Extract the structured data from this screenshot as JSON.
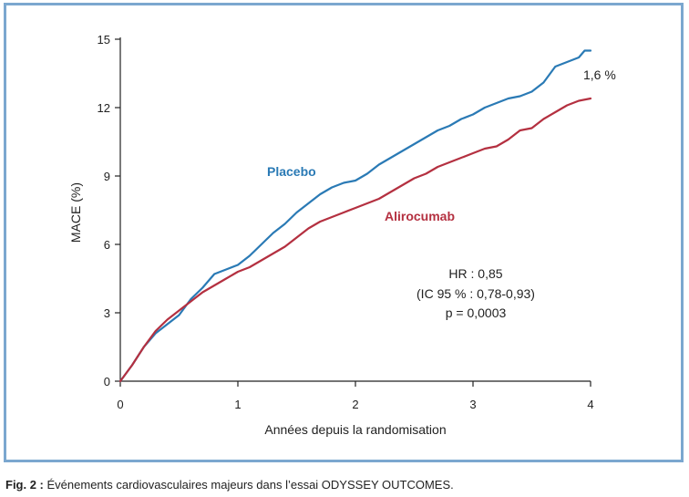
{
  "chart_data": {
    "type": "line",
    "xlabel": "Années depuis la randomisation",
    "ylabel": "MACE (%)",
    "xlim": [
      0,
      4
    ],
    "ylim": [
      0,
      15
    ],
    "x_ticks": [
      0,
      1,
      2,
      3,
      4
    ],
    "y_ticks": [
      0,
      3,
      6,
      9,
      12,
      15
    ],
    "x_tick_labels": [
      "0",
      "1",
      "2",
      "3",
      "4"
    ],
    "y_tick_labels": [
      "0",
      "3",
      "6",
      "9",
      "12",
      "15"
    ],
    "grid": false,
    "series": [
      {
        "name": "Placebo",
        "color": "#2a7ab5",
        "x": [
          0,
          0.1,
          0.2,
          0.3,
          0.4,
          0.5,
          0.6,
          0.7,
          0.8,
          0.9,
          1.0,
          1.1,
          1.2,
          1.3,
          1.4,
          1.5,
          1.6,
          1.7,
          1.8,
          1.9,
          2.0,
          2.1,
          2.2,
          2.3,
          2.4,
          2.5,
          2.6,
          2.7,
          2.8,
          2.9,
          3.0,
          3.1,
          3.2,
          3.3,
          3.4,
          3.5,
          3.6,
          3.7,
          3.8,
          3.9,
          3.95,
          4.0
        ],
        "values": [
          0,
          0.7,
          1.5,
          2.1,
          2.5,
          2.9,
          3.6,
          4.1,
          4.7,
          4.9,
          5.1,
          5.5,
          6.0,
          6.5,
          6.9,
          7.4,
          7.8,
          8.2,
          8.5,
          8.7,
          8.8,
          9.1,
          9.5,
          9.8,
          10.1,
          10.4,
          10.7,
          11.0,
          11.2,
          11.5,
          11.7,
          12.0,
          12.2,
          12.4,
          12.5,
          12.7,
          13.1,
          13.8,
          14.0,
          14.2,
          14.5,
          14.5
        ]
      },
      {
        "name": "Alirocumab",
        "color": "#b43040",
        "x": [
          0,
          0.1,
          0.2,
          0.3,
          0.4,
          0.5,
          0.6,
          0.7,
          0.8,
          0.9,
          1.0,
          1.1,
          1.2,
          1.3,
          1.4,
          1.5,
          1.6,
          1.7,
          1.8,
          1.9,
          2.0,
          2.1,
          2.2,
          2.3,
          2.4,
          2.5,
          2.6,
          2.7,
          2.8,
          2.9,
          3.0,
          3.1,
          3.2,
          3.3,
          3.4,
          3.5,
          3.6,
          3.7,
          3.8,
          3.9,
          4.0
        ],
        "values": [
          0,
          0.7,
          1.5,
          2.2,
          2.7,
          3.1,
          3.5,
          3.9,
          4.2,
          4.5,
          4.8,
          5.0,
          5.3,
          5.6,
          5.9,
          6.3,
          6.7,
          7.0,
          7.2,
          7.4,
          7.6,
          7.8,
          8.0,
          8.3,
          8.6,
          8.9,
          9.1,
          9.4,
          9.6,
          9.8,
          10.0,
          10.2,
          10.3,
          10.6,
          11.0,
          11.1,
          11.5,
          11.8,
          12.1,
          12.3,
          12.4
        ]
      }
    ],
    "series_labels": {
      "placebo": "Placebo",
      "alirocumab": "Alirocumab"
    },
    "annotations": {
      "difference": "1,6 %",
      "hr": "HR : 0,85",
      "ci": "(IC 95 % : 0,78-0,93)",
      "p": "p = 0,0003"
    }
  },
  "caption": {
    "prefix": "Fig. 2 :",
    "text": " Événements cardiovasculaires majeurs dans l’essai ODYSSEY OUTCOMES."
  }
}
